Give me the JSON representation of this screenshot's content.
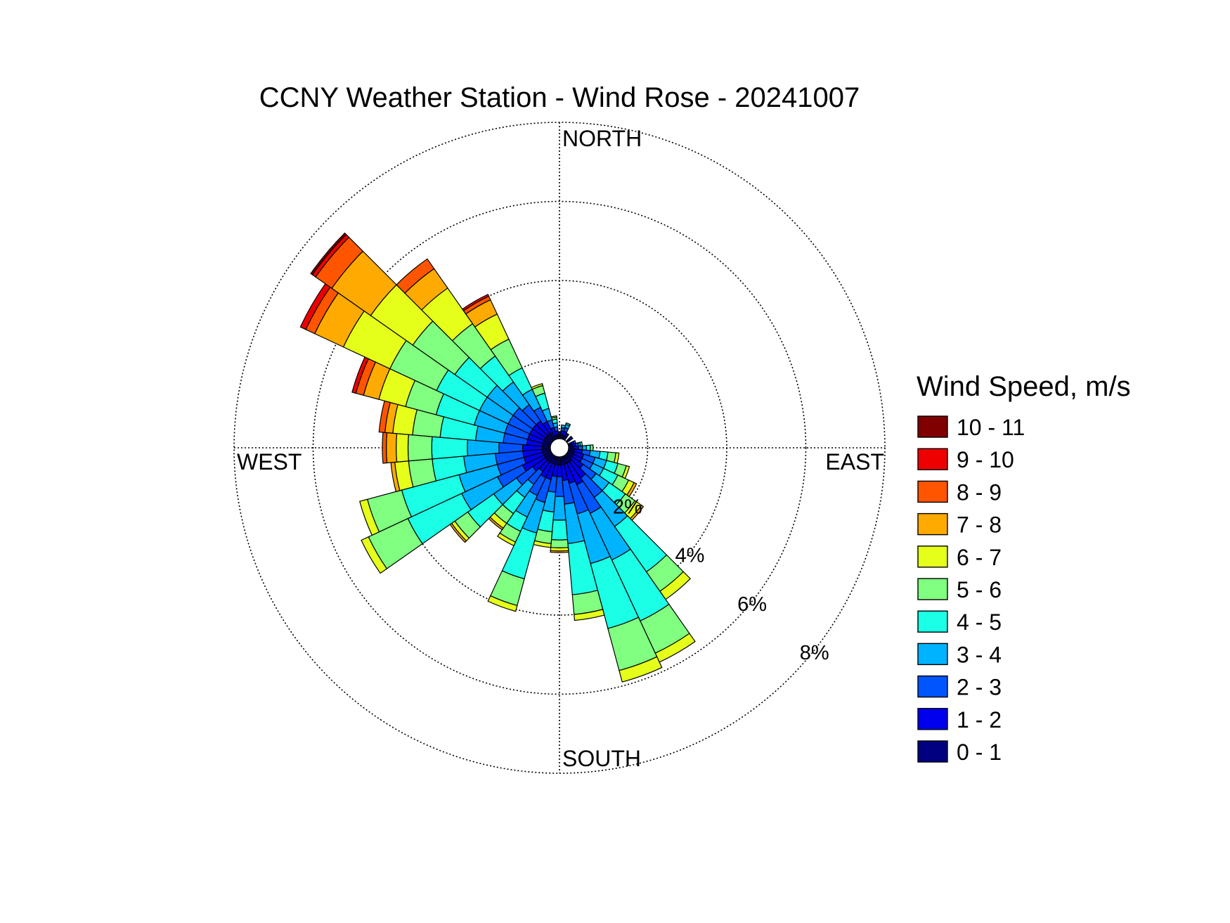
{
  "chart_data": {
    "type": "wind-rose",
    "title": "CCNY Weather Station - Wind Rose - 20241007",
    "direction_labels": {
      "north": "NORTH",
      "east": "EAST",
      "south": "SOUTH",
      "west": "WEST"
    },
    "radial_axis": {
      "unit": "%",
      "max": 8,
      "rings": [
        2,
        4,
        6,
        8
      ],
      "ring_labels": [
        "2%",
        "4%",
        "6%",
        "8%"
      ]
    },
    "legend": {
      "title": "Wind Speed, m/s",
      "bins": [
        {
          "label": "10 - 11",
          "color": "#800000"
        },
        {
          "label": "9 - 10",
          "color": "#ee0000"
        },
        {
          "label": "8 - 9",
          "color": "#ff5500"
        },
        {
          "label": "7 - 8",
          "color": "#ffaa00"
        },
        {
          "label": "6 - 7",
          "color": "#e5ff1a"
        },
        {
          "label": "5 - 6",
          "color": "#80ff80"
        },
        {
          "label": "4 - 5",
          "color": "#1affe5"
        },
        {
          "label": "3 - 4",
          "color": "#00b3ff"
        },
        {
          "label": "2 - 3",
          "color": "#0055ff"
        },
        {
          "label": "1 - 2",
          "color": "#0000ee"
        },
        {
          "label": "0 - 1",
          "color": "#000080"
        }
      ]
    },
    "sector_width_deg": 10,
    "speed_bins_order": [
      "0-1",
      "1-2",
      "2-3",
      "3-4",
      "4-5",
      "5-6",
      "6-7",
      "7-8",
      "8-9",
      "9-10",
      "10-11"
    ],
    "sectors": [
      {
        "direction_deg": 0,
        "cumulative": [
          0.1,
          0.15,
          0.18
        ]
      },
      {
        "direction_deg": 10,
        "cumulative": [
          0.1,
          0.2,
          0.28,
          0.35
        ]
      },
      {
        "direction_deg": 20,
        "cumulative": [
          0.1,
          0.2,
          0.3,
          0.38,
          0.42
        ]
      },
      {
        "direction_deg": 30,
        "cumulative": [
          0.1,
          0.15,
          0.18
        ]
      },
      {
        "direction_deg": 50,
        "cumulative": [
          0.1,
          0.15,
          0.18
        ]
      },
      {
        "direction_deg": 70,
        "cumulative": [
          0.1,
          0.15,
          0.2
        ]
      },
      {
        "direction_deg": 80,
        "cumulative": [
          0.1,
          0.18,
          0.25,
          0.3,
          0.35
        ]
      },
      {
        "direction_deg": 90,
        "cumulative": [
          0.1,
          0.25,
          0.35,
          0.45,
          0.55,
          0.62
        ]
      },
      {
        "direction_deg": 100,
        "cumulative": [
          0.15,
          0.35,
          0.55,
          0.8,
          1.0,
          1.2,
          1.28
        ]
      },
      {
        "direction_deg": 110,
        "cumulative": [
          0.15,
          0.4,
          0.7,
          1.0,
          1.3,
          1.52,
          1.6
        ]
      },
      {
        "direction_deg": 120,
        "cumulative": [
          0.15,
          0.4,
          0.7,
          1.0,
          1.4,
          1.7,
          1.85,
          1.92
        ]
      },
      {
        "direction_deg": 130,
        "cumulative": [
          0.15,
          0.5,
          0.9,
          1.3,
          1.8,
          2.1,
          2.3,
          2.36
        ]
      },
      {
        "direction_deg": 140,
        "cumulative": [
          0.2,
          0.7,
          1.3,
          2.2,
          3.6,
          4.2,
          4.45
        ]
      },
      {
        "direction_deg": 150,
        "cumulative": [
          0.2,
          0.8,
          1.6,
          2.9,
          4.6,
          5.5,
          5.75
        ]
      },
      {
        "direction_deg": 160,
        "cumulative": [
          0.2,
          0.7,
          1.5,
          2.8,
          4.5,
          5.6,
          5.9
        ]
      },
      {
        "direction_deg": 170,
        "cumulative": [
          0.2,
          0.6,
          1.2,
          2.2,
          3.5,
          4.0,
          4.15
        ]
      },
      {
        "direction_deg": 180,
        "cumulative": [
          0.2,
          0.5,
          1.0,
          1.6,
          2.1,
          2.3,
          2.38,
          2.42
        ]
      },
      {
        "direction_deg": 190,
        "cumulative": [
          0.2,
          0.5,
          0.9,
          1.4,
          1.9,
          2.2,
          2.3
        ]
      },
      {
        "direction_deg": 200,
        "cumulative": [
          0.2,
          0.6,
          1.2,
          2.0,
          3.2,
          3.9,
          4.05
        ]
      },
      {
        "direction_deg": 210,
        "cumulative": [
          0.2,
          0.6,
          1.1,
          1.7,
          2.1,
          2.4,
          2.5
        ]
      },
      {
        "direction_deg": 220,
        "cumulative": [
          0.2,
          0.5,
          0.9,
          1.3,
          1.8,
          2.1,
          2.25,
          2.3
        ]
      },
      {
        "direction_deg": 230,
        "cumulative": [
          0.2,
          0.6,
          1.1,
          1.8,
          2.6,
          3.0,
          3.1,
          3.15
        ]
      },
      {
        "direction_deg": 240,
        "cumulative": [
          0.2,
          0.8,
          1.5,
          2.5,
          4.0,
          5.1,
          5.3
        ]
      },
      {
        "direction_deg": 250,
        "cumulative": [
          0.2,
          0.7,
          1.4,
          2.4,
          3.9,
          4.8,
          5.0
        ]
      },
      {
        "direction_deg": 260,
        "cumulative": [
          0.2,
          0.7,
          1.4,
          2.2,
          3.0,
          3.6,
          3.95,
          4.05
        ]
      },
      {
        "direction_deg": 270,
        "cumulative": [
          0.2,
          0.7,
          1.3,
          2.1,
          3.0,
          3.6,
          3.9,
          4.15,
          4.25
        ]
      },
      {
        "direction_deg": 280,
        "cumulative": [
          0.2,
          0.6,
          1.2,
          1.9,
          2.8,
          3.5,
          4.0,
          4.2,
          4.35
        ]
      },
      {
        "direction_deg": 290,
        "cumulative": [
          0.2,
          0.6,
          1.2,
          2.0,
          3.0,
          3.8,
          4.5,
          4.9,
          5.1,
          5.2
        ]
      },
      {
        "direction_deg": 300,
        "cumulative": [
          0.2,
          0.6,
          1.2,
          2.0,
          3.2,
          4.5,
          5.8,
          6.6,
          6.85,
          7.0
        ]
      },
      {
        "direction_deg": 310,
        "cumulative": [
          0.2,
          0.6,
          1.2,
          2.0,
          3.0,
          4.3,
          5.6,
          6.8,
          7.3,
          7.4,
          7.45
        ]
      },
      {
        "direction_deg": 320,
        "cumulative": [
          0.2,
          0.6,
          1.1,
          1.8,
          2.6,
          3.6,
          4.7,
          5.3,
          5.6
        ]
      },
      {
        "direction_deg": 330,
        "cumulative": [
          0.2,
          0.5,
          0.9,
          1.4,
          2.0,
          2.8,
          3.5,
          3.9,
          4.0,
          4.05
        ]
      },
      {
        "direction_deg": 340,
        "cumulative": [
          0.1,
          0.3,
          0.5,
          0.8,
          1.2,
          1.4,
          1.45
        ]
      },
      {
        "direction_deg": 350,
        "cumulative": [
          0.1,
          0.2,
          0.3,
          0.4,
          0.5,
          0.55,
          0.58
        ]
      }
    ]
  }
}
